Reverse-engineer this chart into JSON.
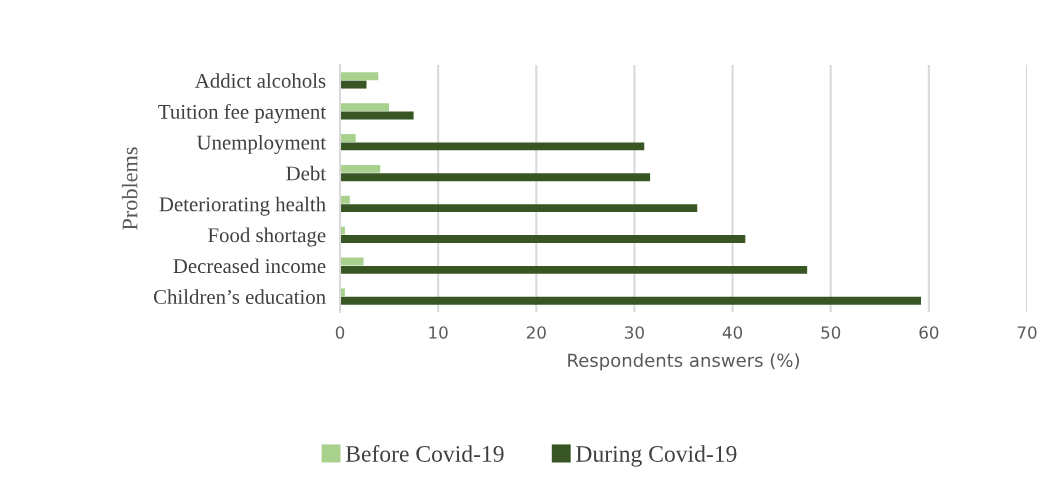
{
  "chart_data": {
    "type": "bar",
    "orientation": "horizontal",
    "xlabel": "Respondents answers (%)",
    "ylabel": "Problems",
    "categories": [
      "Addict alcohols",
      "Tuition fee payment",
      "Unemployment",
      "Debt",
      "Deteriorating health",
      "Food shortage",
      "Decreased income",
      "Children’s education"
    ],
    "series": [
      {
        "name": "Before Covid-19",
        "color": "#a9d18e",
        "values": [
          3.9,
          5.0,
          1.6,
          4.1,
          1.0,
          0.5,
          2.4,
          0.5
        ]
      },
      {
        "name": "During Covid-19",
        "color": "#375623",
        "values": [
          2.7,
          7.5,
          31.0,
          31.6,
          36.4,
          41.3,
          47.6,
          59.2
        ]
      }
    ],
    "xlim": [
      0,
      70
    ],
    "xticks": [
      0,
      10,
      20,
      30,
      40,
      50,
      60,
      70
    ],
    "grid": "x",
    "legend": "bottom"
  }
}
